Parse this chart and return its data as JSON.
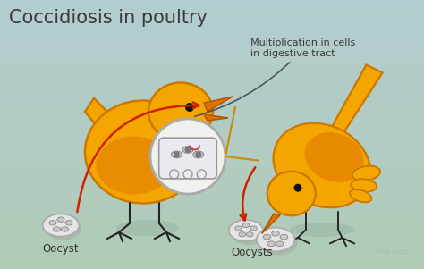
{
  "title": "Coccidiosis in poultry",
  "title_fontsize": 15,
  "title_color": "#3a3a3a",
  "label_oocyst": "Oocyst",
  "label_oocysts": "Oocysts",
  "label_multiplication": "Multiplication in cells\nin digestive tract",
  "label_fontsize": 8.5,
  "annotation_fontsize": 8.0,
  "bird1_body_color": "#f5a500",
  "bird1_outline": "#cc7700",
  "bird1_shadow_color": "#e07000",
  "bird2_body_color": "#f5a500",
  "arrow_color": "#cc2200",
  "dashed_arrow_color": "#cc8800",
  "bg_top": "#b0c8cc",
  "bg_bottom": "#afc8b8",
  "watermark": "VKM 2015"
}
